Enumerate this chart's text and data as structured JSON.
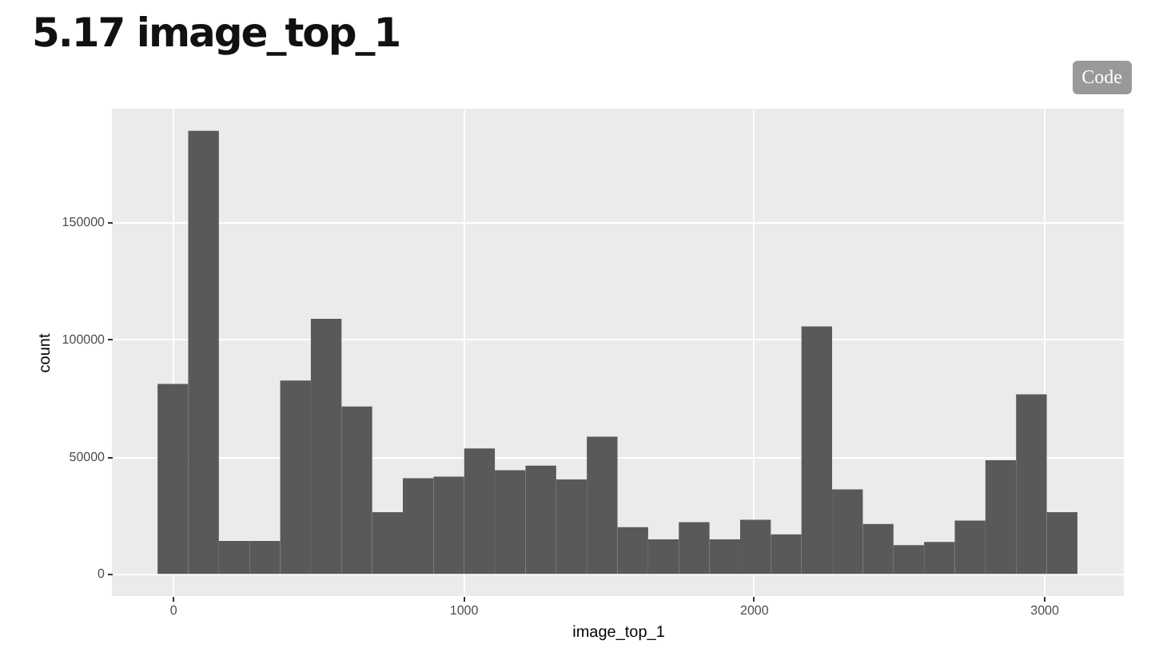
{
  "chart_data": {
    "type": "histogram",
    "title": "5.17 image_top_1",
    "xlabel": "image_top_1",
    "ylabel": "count",
    "bins": [
      -52.8,
      52.8,
      158.4,
      264,
      369.6,
      475.2,
      580.8,
      686.4,
      792,
      897.6,
      1003.2,
      1108.8,
      1214.4,
      1320,
      1425.6,
      1531.2,
      1636.8,
      1742.4,
      1848,
      1953.6,
      2059.2,
      2164.8,
      2270.4,
      2376,
      2481.6,
      2587.2,
      2692.8,
      2798.4,
      2904,
      3009.6,
      3115.2
    ],
    "values": [
      81000,
      189000,
      14000,
      14000,
      82500,
      108800,
      71400,
      26300,
      40800,
      41500,
      53500,
      44200,
      46200,
      40300,
      58500,
      19900,
      14700,
      22000,
      14700,
      23100,
      16800,
      105600,
      36000,
      21300,
      12200,
      13600,
      22700,
      48500,
      76600,
      26300
    ],
    "color": "#595959",
    "xlim": [
      -210,
      3275
    ],
    "xticks": [
      0,
      1000,
      2000,
      3000
    ],
    "ylim": [
      -9500,
      198500
    ],
    "yticks": [
      0,
      50000,
      100000,
      150000
    ],
    "grid": true,
    "annotations": [
      "Code"
    ]
  }
}
